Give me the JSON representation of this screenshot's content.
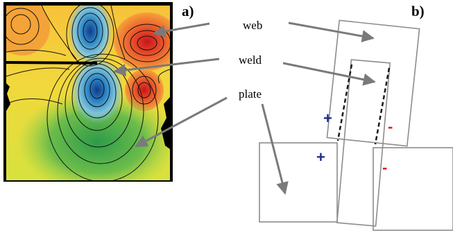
{
  "panels": {
    "a_label": "a)",
    "b_label": "b)"
  },
  "callouts": {
    "web": "web",
    "weld": "weld",
    "plate": "plate"
  },
  "signs": {
    "plus": "+",
    "minus": "-"
  },
  "colors": {
    "plus": "#1c2f8f",
    "minus": "#e0201b",
    "arrow": "#7a7a7a",
    "box": "#8c8c8c",
    "weld_line": "#1a1a1a",
    "contour_frame": "#000000"
  }
}
